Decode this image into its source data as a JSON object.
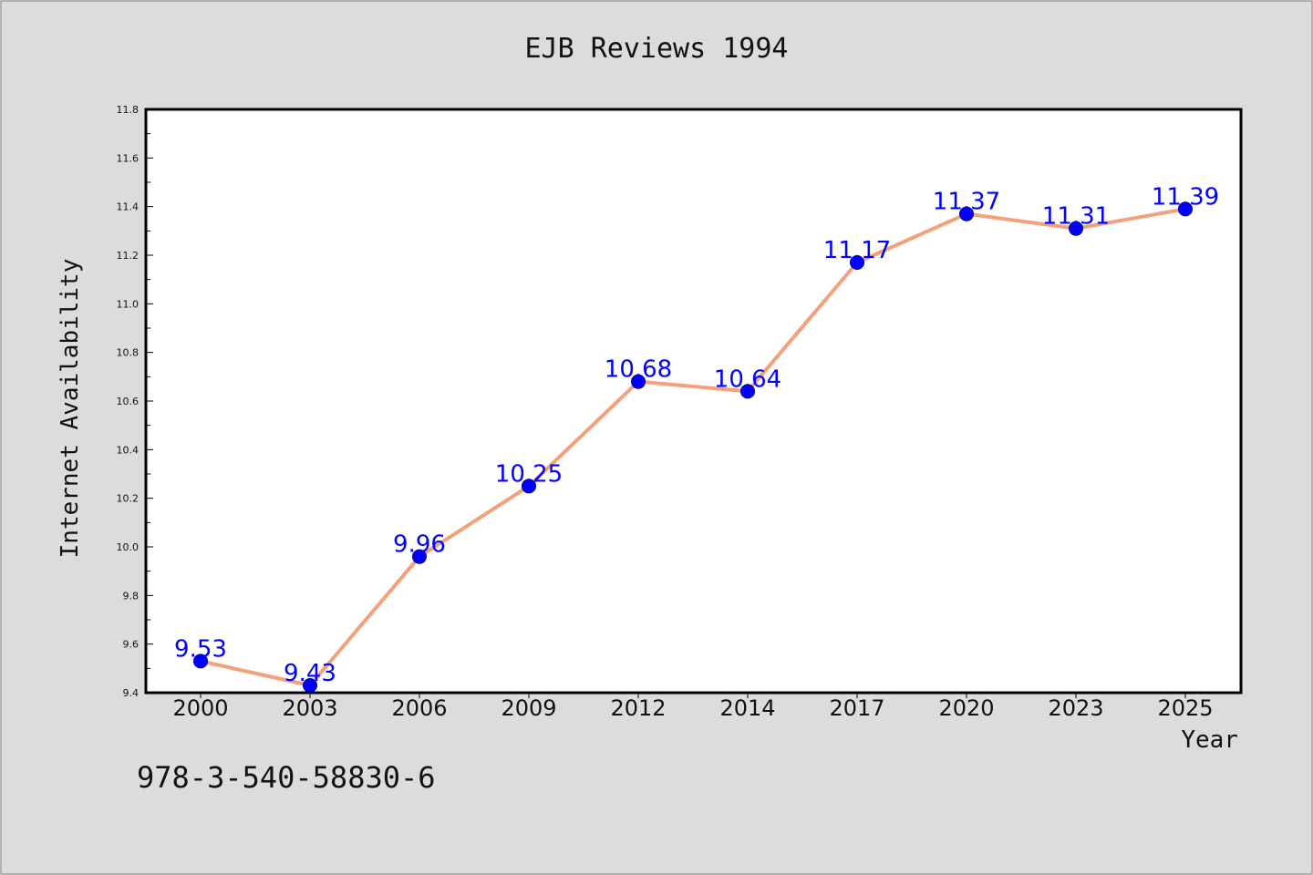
{
  "chart_data": {
    "type": "line",
    "title": "EJB Reviews 1994",
    "xlabel": "Year",
    "ylabel": "Internet Availability",
    "categories": [
      "2000",
      "2003",
      "2006",
      "2009",
      "2012",
      "2014",
      "2017",
      "2020",
      "2023",
      "2025"
    ],
    "values": [
      9.53,
      9.43,
      9.96,
      10.25,
      10.68,
      10.64,
      11.17,
      11.37,
      11.31,
      11.39
    ],
    "data_labels": [
      "9.53",
      "9.43",
      "9.96",
      "10.25",
      "10.68",
      "10.64",
      "11.17",
      "11.37",
      "11.31",
      "11.39"
    ],
    "ylim": [
      9.4,
      11.8
    ],
    "yticks": [
      "9.4",
      "9.6",
      "9.8",
      "10.0",
      "10.2",
      "10.4",
      "10.6",
      "10.8",
      "11.0",
      "11.2",
      "11.4",
      "11.6",
      "11.8"
    ],
    "grid": false,
    "legend": "none",
    "line_color": "#f4a07a",
    "marker_color": "#0000ff"
  },
  "footer_text": "978-3-540-58830-6"
}
